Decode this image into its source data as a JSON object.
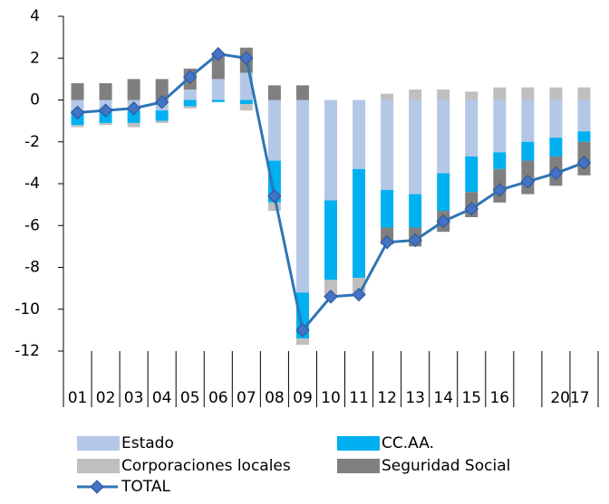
{
  "chart_data": {
    "type": "bar",
    "categories": [
      "01",
      "02",
      "03",
      "04",
      "05",
      "06",
      "07",
      "08",
      "09",
      "10",
      "11",
      "12",
      "13",
      "14",
      "15",
      "16",
      null,
      "2017",
      null
    ],
    "series": [
      {
        "name": "Estado",
        "color": "#b4c7e7",
        "values": [
          -0.5,
          -0.4,
          -0.5,
          -0.5,
          0.5,
          1.0,
          1.3,
          -2.9,
          -9.2,
          -4.8,
          -3.3,
          -4.3,
          -4.5,
          -3.5,
          -2.7,
          -2.5,
          -2.0,
          -1.8,
          -1.5
        ]
      },
      {
        "name": "CC.AA.",
        "color": "#00b0f0",
        "values": [
          -0.7,
          -0.7,
          -0.6,
          -0.5,
          -0.3,
          -0.1,
          -0.2,
          -2.0,
          -2.2,
          -3.8,
          -5.2,
          -1.8,
          -1.6,
          -1.8,
          -1.7,
          -0.8,
          -0.9,
          -0.9,
          -0.5
        ]
      },
      {
        "name": "Corporaciones locales",
        "color": "#bfbfbf",
        "values": [
          -0.1,
          -0.1,
          -0.2,
          -0.1,
          -0.1,
          0,
          -0.3,
          -0.4,
          -0.3,
          -0.8,
          -0.8,
          0.3,
          0.5,
          0.5,
          0.4,
          0.6,
          0.6,
          0.6,
          0.6
        ]
      },
      {
        "name": "Seguridad Social",
        "color": "#7f7f7f",
        "values": [
          0.8,
          0.8,
          1.0,
          1.0,
          1.0,
          1.2,
          1.2,
          0.7,
          0.7,
          0,
          0,
          -0.8,
          -0.9,
          -1.0,
          -1.2,
          -1.6,
          -1.6,
          -1.4,
          -1.6
        ]
      },
      {
        "name": "TOTAL",
        "type": "line",
        "color": "#2e75b6",
        "values": [
          -0.6,
          -0.5,
          -0.4,
          -0.1,
          1.1,
          2.2,
          2.0,
          -4.6,
          -11.0,
          -9.4,
          -9.3,
          -6.8,
          -6.7,
          -5.8,
          -5.2,
          -4.3,
          -3.9,
          -3.5,
          -3.0
        ]
      }
    ],
    "ylim": [
      -12,
      4
    ],
    "yticks": [
      -12,
      -10,
      -8,
      -6,
      -4,
      -2,
      0,
      2,
      4
    ],
    "grid": false
  }
}
